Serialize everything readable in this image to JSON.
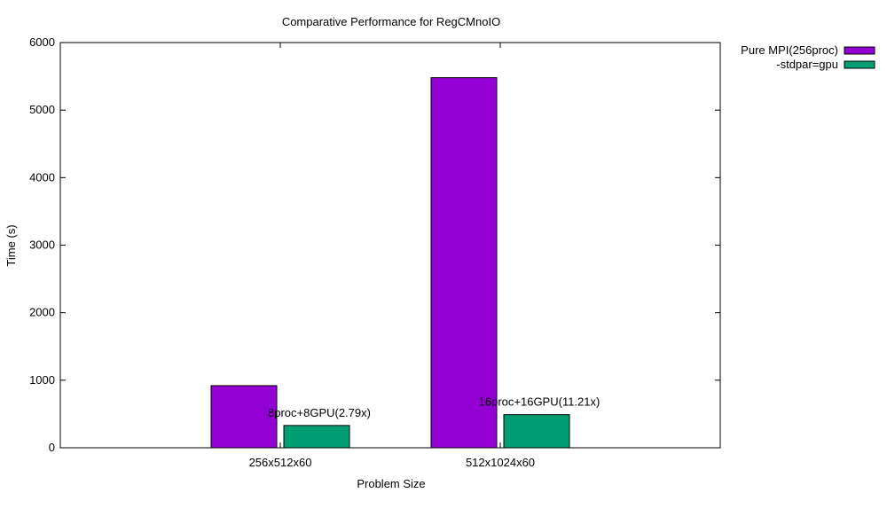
{
  "chart_data": {
    "type": "bar",
    "title": "Comparative Performance for RegCMnoIO",
    "xlabel": "Problem Size",
    "ylabel": "Time (s)",
    "ylim": [
      0,
      6000
    ],
    "yticks": [
      0,
      1000,
      2000,
      3000,
      4000,
      5000,
      6000
    ],
    "categories": [
      "256x512x60",
      "512x1024x60"
    ],
    "series": [
      {
        "name": "Pure MPI(256proc)",
        "color": "#9400d3",
        "values": [
          920,
          5480
        ]
      },
      {
        "name": "-stdpar=gpu",
        "color": "#009e73",
        "values": [
          330,
          490
        ]
      }
    ],
    "annotations": [
      "8proc+8GPU(2.79x)",
      "16proc+16GPU(11.21x)"
    ],
    "legend": "outside-top-right",
    "grid": false
  }
}
